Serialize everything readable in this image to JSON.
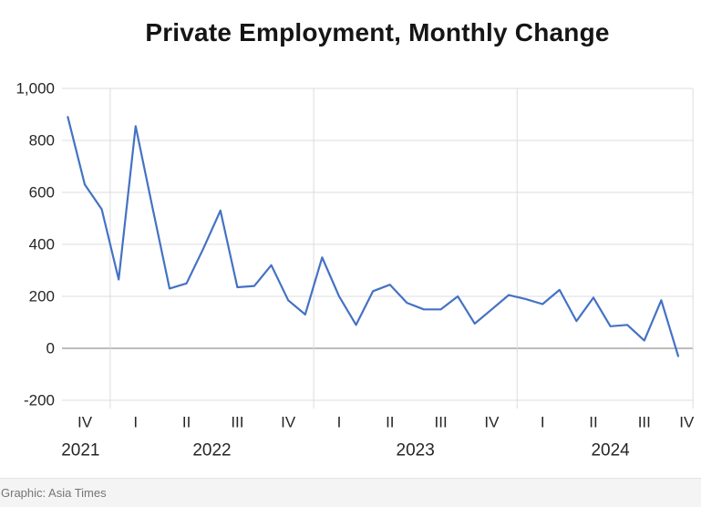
{
  "title": "Private Employment, Monthly Change",
  "footer": {
    "credit": "Graphic: Asia Times"
  },
  "colors": {
    "line": "#4472C4",
    "gridline": "#dcdcdc",
    "zero_line": "#a6a6a6",
    "tick_text": "#262626",
    "title_text": "#151515",
    "footer_text": "#757575"
  },
  "chart_data": {
    "type": "line",
    "title": "Private Employment, Monthly Change",
    "x": [
      "2021-10",
      "2021-11",
      "2021-12",
      "2022-01",
      "2022-02",
      "2022-03",
      "2022-04",
      "2022-05",
      "2022-06",
      "2022-07",
      "2022-08",
      "2022-09",
      "2022-10",
      "2022-11",
      "2022-12",
      "2023-01",
      "2023-02",
      "2023-03",
      "2023-04",
      "2023-05",
      "2023-06",
      "2023-07",
      "2023-08",
      "2023-09",
      "2023-10",
      "2023-11",
      "2023-12",
      "2024-01",
      "2024-02",
      "2024-03",
      "2024-04",
      "2024-05",
      "2024-06",
      "2024-07",
      "2024-08",
      "2024-09",
      "2024-10"
    ],
    "values": [
      890,
      630,
      535,
      265,
      855,
      540,
      230,
      250,
      385,
      530,
      235,
      240,
      320,
      185,
      130,
      350,
      200,
      90,
      220,
      245,
      175,
      150,
      150,
      200,
      95,
      150,
      205,
      190,
      170,
      225,
      105,
      195,
      85,
      90,
      30,
      185,
      -30
    ],
    "ylim": [
      -200,
      1000
    ],
    "y_ticks": [
      {
        "value": 1000,
        "label": "1,000"
      },
      {
        "value": 800,
        "label": "800"
      },
      {
        "value": 600,
        "label": "600"
      },
      {
        "value": 400,
        "label": "400"
      },
      {
        "value": 200,
        "label": "200"
      },
      {
        "value": 0,
        "label": "0"
      },
      {
        "value": -200,
        "label": "-200"
      }
    ],
    "quarter_ticks": [
      {
        "label": "IV",
        "month_index": 1
      },
      {
        "label": "I",
        "month_index": 4
      },
      {
        "label": "II",
        "month_index": 7
      },
      {
        "label": "III",
        "month_index": 10
      },
      {
        "label": "IV",
        "month_index": 13
      },
      {
        "label": "I",
        "month_index": 16
      },
      {
        "label": "II",
        "month_index": 19
      },
      {
        "label": "III",
        "month_index": 22
      },
      {
        "label": "IV",
        "month_index": 25
      },
      {
        "label": "I",
        "month_index": 28
      },
      {
        "label": "II",
        "month_index": 31
      },
      {
        "label": "III",
        "month_index": 34
      },
      {
        "label": "IV",
        "month_index": 36.5
      }
    ],
    "year_labels": [
      {
        "label": "2021",
        "month_index": 0.75
      },
      {
        "label": "2022",
        "month_index": 8.5
      },
      {
        "label": "2023",
        "month_index": 20.5
      },
      {
        "label": "2024",
        "month_index": 32
      }
    ],
    "year_separators_month_index": [
      2.5,
      14.5,
      26.5,
      36.87
    ],
    "grid": true,
    "legend": false
  }
}
